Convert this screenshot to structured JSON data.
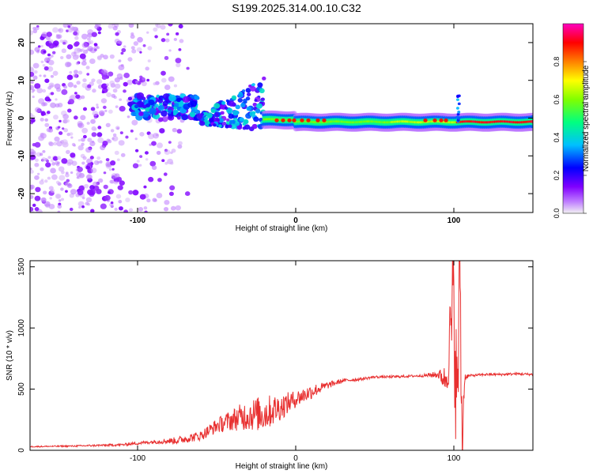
{
  "title": "S199.2025.314.00.10.C32",
  "chart_data": [
    {
      "type": "heatmap",
      "xlabel": "Height of straight line (km)",
      "ylabel": "Frequency (Hz)",
      "xlim": [
        -168,
        150
      ],
      "ylim": [
        -25,
        25
      ],
      "xticks": [
        -100,
        0,
        100
      ],
      "yticks": [
        -20,
        -10,
        0,
        10,
        20
      ],
      "grid": false,
      "colorbar": {
        "label": "Normalized spectral amplitude",
        "range": [
          0,
          1
        ],
        "ticks": [
          "0.0",
          "0.2",
          "0.4",
          "0.6",
          "0.8"
        ],
        "colormap": [
          "#f2f2f2",
          "#8000ff",
          "#0000ff",
          "#00c0ff",
          "#00ff80",
          "#80ff00",
          "#ffff00",
          "#ff8000",
          "#ff0000",
          "#ff00c0"
        ]
      },
      "features": {
        "scattered_noise_region_km": [
          -168,
          -68
        ],
        "dense_cluster_km": [
          -105,
          -62
        ],
        "dense_cluster_freq_hz": [
          0,
          6
        ],
        "rising_segment_km": [
          -62,
          -20
        ],
        "rising_segment_freq_hz": [
          -2,
          12
        ],
        "flat_band_km": [
          -20,
          150
        ],
        "flat_band_freq_hz": -1,
        "spike_at_km": 102
      }
    },
    {
      "type": "line",
      "xlabel": "Height of straight line (km)",
      "ylabel": "SNR (10 * v/v)",
      "xlim": [
        -168,
        150
      ],
      "ylim": [
        0,
        1550
      ],
      "xticks": [
        -100,
        0,
        100
      ],
      "yticks": [
        0,
        500,
        1000,
        1500
      ],
      "grid": false,
      "series": [
        {
          "color": "#e83030",
          "x": [
            -168,
            -140,
            -110,
            -90,
            -75,
            -60,
            -50,
            -40,
            -30,
            -20,
            -10,
            0,
            10,
            20,
            30,
            40,
            50,
            60,
            70,
            80,
            90,
            95,
            100,
            102,
            104,
            105,
            107,
            110,
            120,
            130,
            140,
            150
          ],
          "y": [
            30,
            35,
            45,
            70,
            80,
            120,
            200,
            250,
            290,
            300,
            350,
            420,
            480,
            530,
            570,
            580,
            600,
            600,
            605,
            610,
            620,
            580,
            1200,
            300,
            1550,
            100,
            600,
            610,
            620,
            620,
            625,
            620
          ],
          "noise": [
            5,
            6,
            10,
            15,
            30,
            40,
            60,
            90,
            130,
            150,
            110,
            70,
            60,
            30,
            15,
            12,
            10,
            10,
            10,
            10,
            30,
            120,
            600,
            600,
            600,
            600,
            30,
            10,
            10,
            10,
            10,
            10
          ]
        }
      ]
    }
  ]
}
